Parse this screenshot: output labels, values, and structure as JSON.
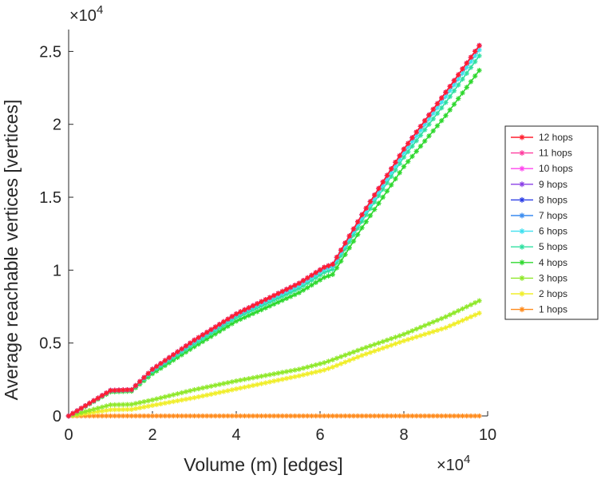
{
  "chart_data": {
    "type": "line",
    "title": "",
    "xlabel": "Volume (m) [edges]",
    "ylabel": "Average reachable vertices [vertices]",
    "x_exponent_label": "×10",
    "x_exponent_power": "4",
    "y_exponent_label": "×10",
    "y_exponent_power": "4",
    "xlim": [
      0,
      100000
    ],
    "ylim": [
      0,
      26500
    ],
    "x_ticks": [
      0,
      20000,
      40000,
      60000,
      80000,
      100000
    ],
    "x_tick_labels": [
      "0",
      "2",
      "4",
      "6",
      "8",
      "10"
    ],
    "y_ticks": [
      0,
      5000,
      10000,
      15000,
      20000,
      25000
    ],
    "y_tick_labels": [
      "0",
      "0.5",
      "1",
      "1.5",
      "2",
      "2.5"
    ],
    "marker": "asterisk",
    "legend_position": "right",
    "series": [
      {
        "name": "12 hops",
        "color": "#ff1f2f",
        "points": [
          [
            0,
            0
          ],
          [
            10000,
            1750
          ],
          [
            15000,
            1800
          ],
          [
            20000,
            3200
          ],
          [
            30000,
            5200
          ],
          [
            40000,
            7000
          ],
          [
            55000,
            9100
          ],
          [
            61000,
            10200
          ],
          [
            63000,
            10400
          ],
          [
            70000,
            13800
          ],
          [
            80000,
            18300
          ],
          [
            90000,
            22200
          ],
          [
            98000,
            25400
          ]
        ]
      },
      {
        "name": "11 hops",
        "color": "#ff3fa0",
        "points": [
          [
            0,
            0
          ],
          [
            10000,
            1750
          ],
          [
            15000,
            1800
          ],
          [
            20000,
            3200
          ],
          [
            30000,
            5200
          ],
          [
            40000,
            7000
          ],
          [
            55000,
            9100
          ],
          [
            61000,
            10200
          ],
          [
            63000,
            10400
          ],
          [
            70000,
            13800
          ],
          [
            80000,
            18300
          ],
          [
            90000,
            22200
          ],
          [
            98000,
            25400
          ]
        ]
      },
      {
        "name": "10 hops",
        "color": "#ff44ee",
        "points": [
          [
            0,
            0
          ],
          [
            10000,
            1750
          ],
          [
            15000,
            1800
          ],
          [
            20000,
            3200
          ],
          [
            30000,
            5200
          ],
          [
            40000,
            7000
          ],
          [
            55000,
            9100
          ],
          [
            61000,
            10200
          ],
          [
            63000,
            10400
          ],
          [
            70000,
            13800
          ],
          [
            80000,
            18300
          ],
          [
            90000,
            22200
          ],
          [
            98000,
            25400
          ]
        ]
      },
      {
        "name": "9 hops",
        "color": "#8a3fe6",
        "points": [
          [
            0,
            0
          ],
          [
            10000,
            1750
          ],
          [
            15000,
            1800
          ],
          [
            20000,
            3200
          ],
          [
            30000,
            5200
          ],
          [
            40000,
            7000
          ],
          [
            55000,
            9100
          ],
          [
            61000,
            10200
          ],
          [
            63000,
            10400
          ],
          [
            70000,
            13800
          ],
          [
            80000,
            18300
          ],
          [
            90000,
            22200
          ],
          [
            98000,
            25400
          ]
        ]
      },
      {
        "name": "8 hops",
        "color": "#2a3de6",
        "points": [
          [
            0,
            0
          ],
          [
            10000,
            1750
          ],
          [
            15000,
            1800
          ],
          [
            20000,
            3200
          ],
          [
            30000,
            5200
          ],
          [
            40000,
            7000
          ],
          [
            55000,
            9100
          ],
          [
            61000,
            10200
          ],
          [
            63000,
            10400
          ],
          [
            70000,
            13800
          ],
          [
            80000,
            18300
          ],
          [
            90000,
            22200
          ],
          [
            98000,
            25400
          ]
        ]
      },
      {
        "name": "7 hops",
        "color": "#3a8cf0",
        "points": [
          [
            0,
            0
          ],
          [
            10000,
            1750
          ],
          [
            15000,
            1800
          ],
          [
            20000,
            3200
          ],
          [
            30000,
            5200
          ],
          [
            40000,
            7000
          ],
          [
            55000,
            9100
          ],
          [
            61000,
            10200
          ],
          [
            63000,
            10400
          ],
          [
            70000,
            13800
          ],
          [
            80000,
            18300
          ],
          [
            90000,
            22200
          ],
          [
            98000,
            25400
          ]
        ]
      },
      {
        "name": "6 hops",
        "color": "#3fe0f0",
        "points": [
          [
            0,
            0
          ],
          [
            10000,
            1740
          ],
          [
            15000,
            1790
          ],
          [
            20000,
            3150
          ],
          [
            30000,
            5100
          ],
          [
            40000,
            6900
          ],
          [
            55000,
            8950
          ],
          [
            61000,
            10050
          ],
          [
            63000,
            10250
          ],
          [
            70000,
            13600
          ],
          [
            80000,
            18050
          ],
          [
            90000,
            21900
          ],
          [
            98000,
            25100
          ]
        ]
      },
      {
        "name": "5 hops",
        "color": "#2fe0a0",
        "points": [
          [
            0,
            0
          ],
          [
            10000,
            1720
          ],
          [
            15000,
            1770
          ],
          [
            20000,
            3050
          ],
          [
            30000,
            4950
          ],
          [
            40000,
            6750
          ],
          [
            55000,
            8750
          ],
          [
            61000,
            9850
          ],
          [
            63000,
            10050
          ],
          [
            70000,
            13350
          ],
          [
            80000,
            17750
          ],
          [
            90000,
            21500
          ],
          [
            98000,
            24700
          ]
        ]
      },
      {
        "name": "4 hops",
        "color": "#2ed82e",
        "points": [
          [
            0,
            0
          ],
          [
            10000,
            1650
          ],
          [
            15000,
            1700
          ],
          [
            20000,
            2900
          ],
          [
            30000,
            4750
          ],
          [
            40000,
            6500
          ],
          [
            55000,
            8450
          ],
          [
            61000,
            9500
          ],
          [
            63000,
            9700
          ],
          [
            70000,
            12900
          ],
          [
            80000,
            17100
          ],
          [
            90000,
            20600
          ],
          [
            98000,
            23700
          ]
        ]
      },
      {
        "name": "3 hops",
        "color": "#8fe82a",
        "points": [
          [
            0,
            0
          ],
          [
            10000,
            760
          ],
          [
            15000,
            790
          ],
          [
            20000,
            1100
          ],
          [
            30000,
            1800
          ],
          [
            40000,
            2400
          ],
          [
            55000,
            3200
          ],
          [
            61000,
            3650
          ],
          [
            63000,
            3850
          ],
          [
            70000,
            4600
          ],
          [
            80000,
            5600
          ],
          [
            90000,
            6800
          ],
          [
            98000,
            7900
          ]
        ]
      },
      {
        "name": "2 hops",
        "color": "#f0ee2a",
        "points": [
          [
            0,
            0
          ],
          [
            10000,
            420
          ],
          [
            15000,
            450
          ],
          [
            20000,
            720
          ],
          [
            30000,
            1250
          ],
          [
            40000,
            1850
          ],
          [
            55000,
            2750
          ],
          [
            61000,
            3150
          ],
          [
            63000,
            3350
          ],
          [
            70000,
            4150
          ],
          [
            80000,
            5150
          ],
          [
            90000,
            6050
          ],
          [
            98000,
            7050
          ]
        ]
      },
      {
        "name": "1 hops",
        "color": "#ff8a1a",
        "points": [
          [
            0,
            0
          ],
          [
            20000,
            0
          ],
          [
            40000,
            0
          ],
          [
            60000,
            0
          ],
          [
            80000,
            0
          ],
          [
            98000,
            0
          ]
        ]
      }
    ]
  }
}
